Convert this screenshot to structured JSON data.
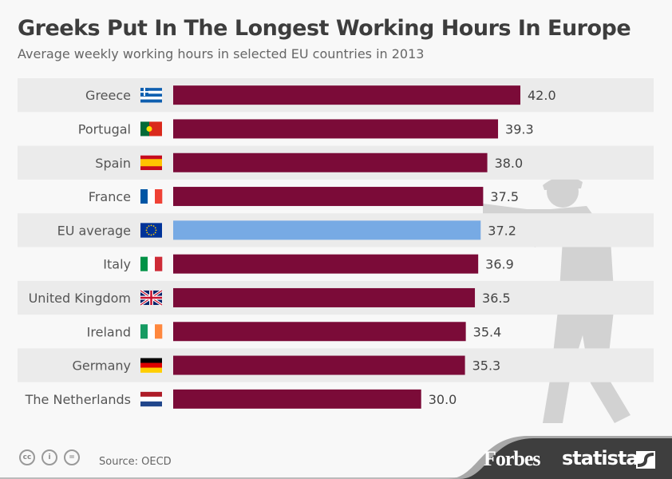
{
  "header": {
    "title": "Greeks Put In The Longest Working Hours In Europe",
    "subtitle": "Average weekly working hours in selected EU countries in 2013"
  },
  "footer": {
    "source": "Source: OECD",
    "brand1": "Forbes",
    "brand2": "statista",
    "license_icons": [
      "cc-icon",
      "by-icon",
      "nd-icon"
    ]
  },
  "colors": {
    "bar": "#7b0b38",
    "highlight": "#77aae4",
    "stripe": "#ebebeb"
  },
  "chart_data": {
    "type": "bar",
    "orientation": "horizontal",
    "title": "Greeks Put In The Longest Working Hours In Europe",
    "xlabel": "",
    "ylabel": "Average weekly working hours",
    "xlim": [
      0,
      42
    ],
    "categories": [
      "Greece",
      "Portugal",
      "Spain",
      "France",
      "EU average",
      "Italy",
      "United Kingdom",
      "Ireland",
      "Germany",
      "The Netherlands"
    ],
    "values": [
      42.0,
      39.3,
      38.0,
      37.5,
      37.2,
      36.9,
      36.5,
      35.4,
      35.3,
      30.0
    ],
    "labels": [
      "42.0",
      "39.3",
      "38.0",
      "37.5",
      "37.2",
      "36.9",
      "36.5",
      "35.4",
      "35.3",
      "30.0"
    ],
    "highlight": "EU average"
  }
}
